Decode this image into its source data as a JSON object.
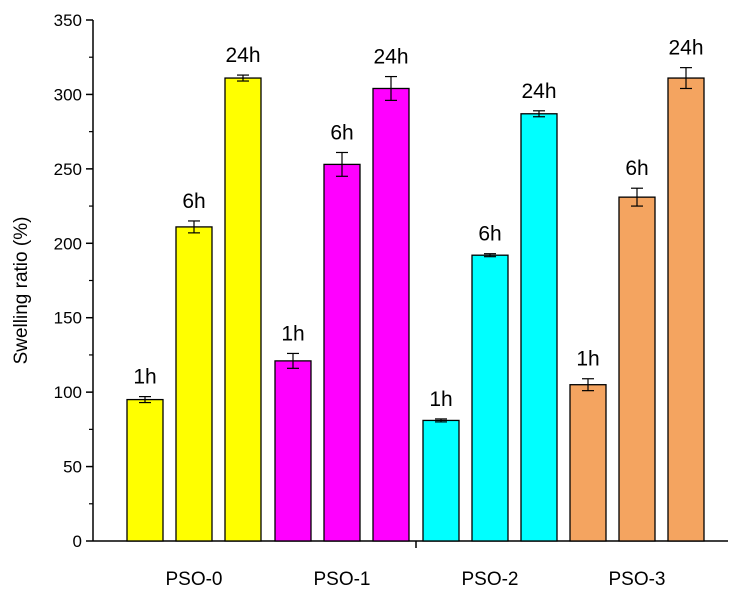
{
  "chart_data": {
    "type": "bar",
    "title": "",
    "xlabel": "",
    "ylabel": "Swelling ratio (%)",
    "ylim": [
      0,
      350
    ],
    "yticks": [
      0,
      50,
      100,
      150,
      200,
      250,
      300,
      350
    ],
    "categories": [
      "PSO-0",
      "PSO-1",
      "PSO-2",
      "PSO-3"
    ],
    "series": [
      {
        "name": "1h",
        "values": [
          95,
          121,
          81,
          105
        ],
        "errors": [
          2,
          5,
          1,
          4
        ]
      },
      {
        "name": "6h",
        "values": [
          211,
          253,
          192,
          231
        ],
        "errors": [
          4,
          8,
          1,
          6
        ]
      },
      {
        "name": "24h",
        "values": [
          311,
          304,
          287,
          311
        ],
        "errors": [
          2,
          8,
          2,
          7
        ]
      }
    ],
    "colors": {
      "PSO-0": "#ffff00",
      "PSO-1": "#ff00ff",
      "PSO-2": "#00ffff",
      "PSO-3": "#f4a460"
    },
    "legend": "none",
    "grid": false
  }
}
